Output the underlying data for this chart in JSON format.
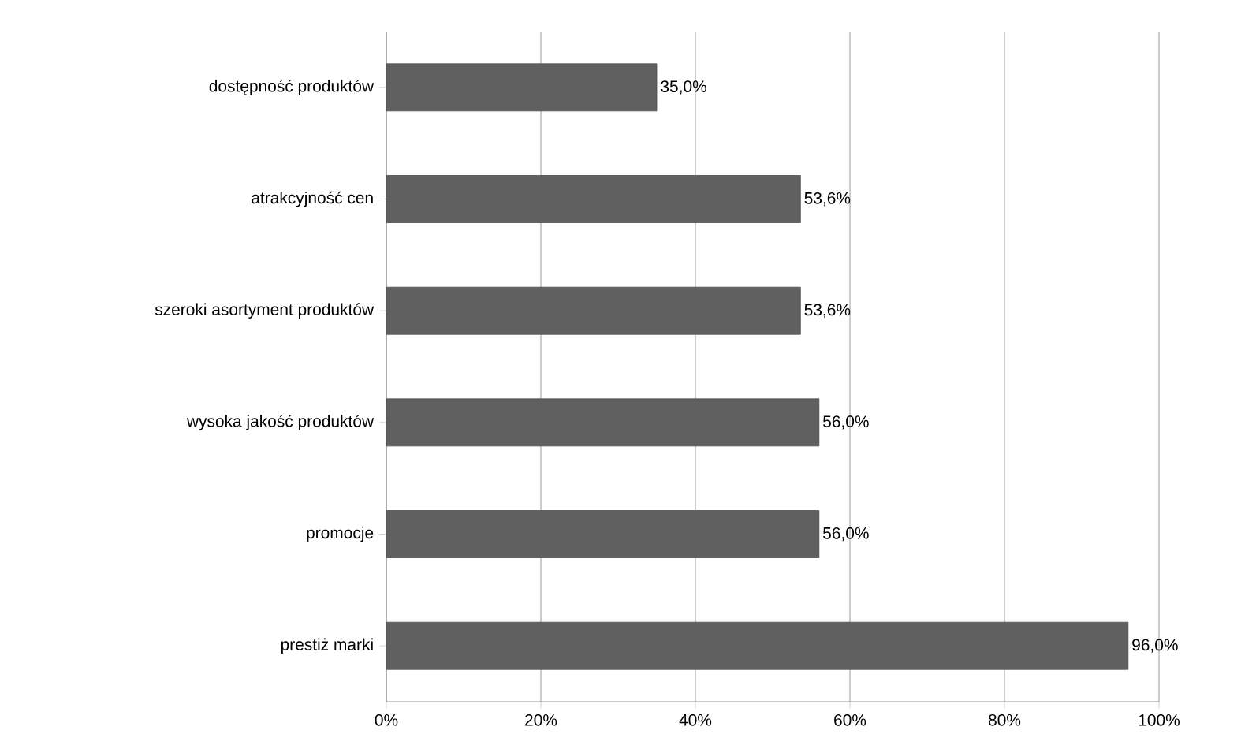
{
  "chart_data": {
    "type": "bar",
    "orientation": "horizontal",
    "categories": [
      "dostępność produktów",
      "atrakcyjność cen",
      "szeroki asortyment produktów",
      "wysoka jakość produktów",
      "promocje",
      "prestiż marki"
    ],
    "values": [
      35.0,
      53.6,
      53.6,
      56.0,
      56.0,
      96.0
    ],
    "value_labels": [
      "35,0%",
      "53,6%",
      "53,6%",
      "56,0%",
      "56,0%",
      "96,0%"
    ],
    "color": "#606060",
    "xlim": [
      0,
      100
    ],
    "xticks": [
      {
        "value": 0,
        "label": "0%"
      },
      {
        "value": 20,
        "label": "20%"
      },
      {
        "value": 40,
        "label": "40%"
      },
      {
        "value": 60,
        "label": "60%"
      },
      {
        "value": 80,
        "label": "80%"
      },
      {
        "value": 100,
        "label": "100%"
      }
    ],
    "grid": "x"
  }
}
